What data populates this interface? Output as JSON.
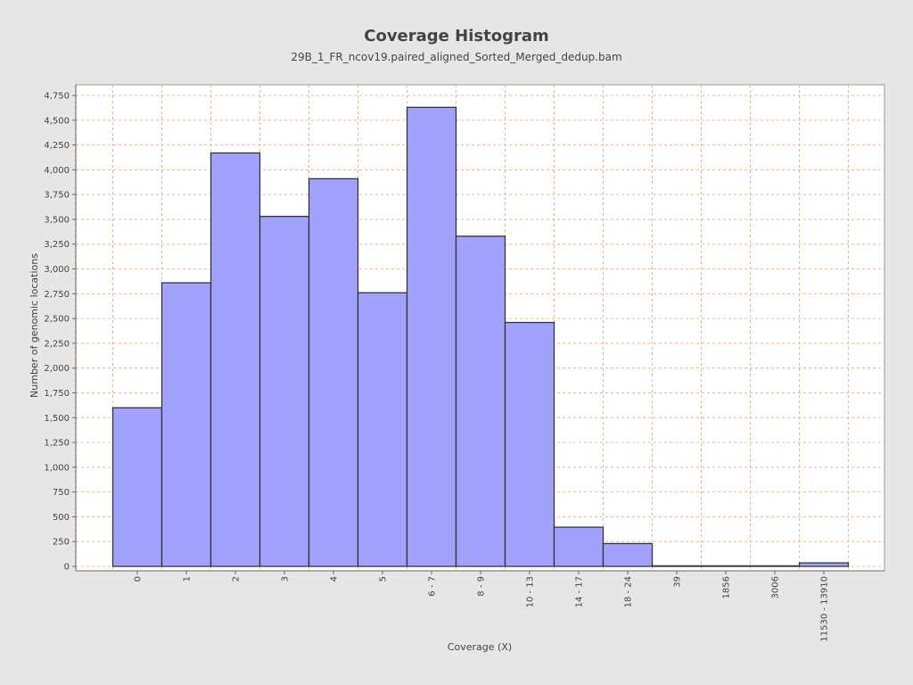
{
  "chart_data": {
    "type": "bar",
    "title": "Coverage Histogram",
    "subtitle": "29B_1_FR_ncov19.paired_aligned_Sorted_Merged_dedup.bam",
    "xlabel": "Coverage (X)",
    "ylabel": "Number of genomic locations",
    "ylim": [
      0,
      4870
    ],
    "yticks": [
      0,
      250,
      500,
      750,
      1000,
      1250,
      1500,
      1750,
      2000,
      2250,
      2500,
      2750,
      3000,
      3250,
      3500,
      3750,
      4000,
      4250,
      4500,
      4750
    ],
    "ytick_labels": [
      "0",
      "250",
      "500",
      "750",
      "1,000",
      "1,250",
      "1,500",
      "1,750",
      "2,000",
      "2,250",
      "2,500",
      "2,750",
      "3,000",
      "3,250",
      "3,500",
      "3,750",
      "4,000",
      "4,250",
      "4,500",
      "4,750"
    ],
    "categories": [
      "0",
      "1",
      "2",
      "3",
      "4",
      "5",
      "6 - 7",
      "8 - 9",
      "10 - 13",
      "14 - 17",
      "18 - 24",
      "39",
      "1856",
      "3006",
      "11530 - 13910"
    ],
    "values": [
      1600,
      2860,
      4170,
      3530,
      3910,
      2760,
      4630,
      3330,
      2460,
      395,
      230,
      1,
      1,
      1,
      35
    ],
    "grid": true,
    "colors": {
      "bar_fill": "#a2a2fd",
      "bar_stroke": "#333333",
      "grid": "#f2b48c",
      "plot_bg": "#ffffff",
      "page_bg": "#e6e6e6"
    }
  }
}
